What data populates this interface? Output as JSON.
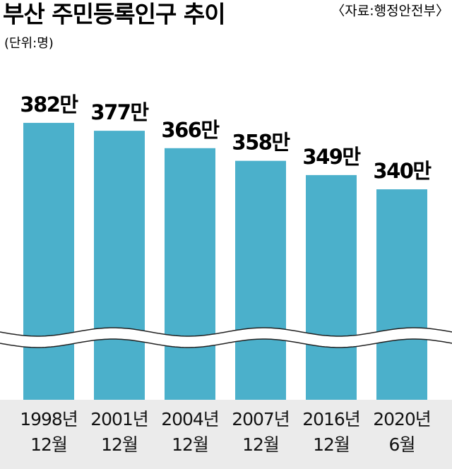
{
  "chart_data": {
    "type": "bar",
    "title": "부산 주민등록인구 추이",
    "subtitle": "(단위:명)",
    "source": "〈자료:행정안전부〉",
    "categories": [
      "1998년\n12월",
      "2001년\n12월",
      "2004년\n12월",
      "2007년\n12월",
      "2016년\n12월",
      "2020년\n6월"
    ],
    "values": [
      382,
      377,
      366,
      358,
      349,
      340
    ],
    "value_labels": [
      "382만",
      "377만",
      "366만",
      "358만",
      "349만",
      "340만"
    ],
    "color": "#4bb0cb",
    "ylim": [
      207,
      415
    ],
    "axis_break": true
  }
}
